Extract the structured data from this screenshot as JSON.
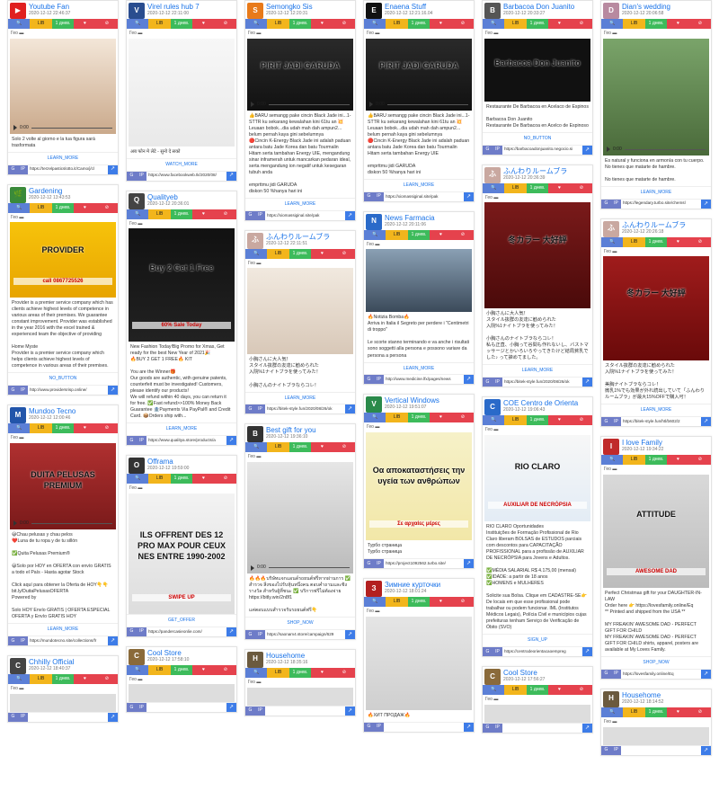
{
  "bar_labels": {
    "ip": "IP",
    "lib": "LIB",
    "day": "1 днев.",
    "geo_label": "Гео"
  },
  "columns": [
    [
      {
        "name": "Youtube Fan",
        "date": "2020-12-12 22:46:37",
        "avatar": "▶",
        "avatar_color": "#e02020",
        "media_h": 106,
        "media_bg": "linear-gradient(#f3e6d8,#caa98b)",
        "video": true,
        "time": "0:00",
        "desc": "Solo 2 volte al giorno e la tua figura sarà trasformata",
        "cta": "LEARN_MORE",
        "url": "https://terzelpasticslotto.it/Camo/j/cl"
      },
      {
        "name": "Gardening",
        "date": "2020-12-12 13:43:53",
        "avatar": "🌿",
        "avatar_color": "#3a8a3a",
        "media_h": 84,
        "media_bg": "linear-gradient(#f7c30b,#e7a400)",
        "overlay": "PROVIDER",
        "overlay2": "call 0867725526",
        "desc": "Provider is a premier service company which has clients achieve highest levels of competence in various areas of their premises. We guarantee constant improvement. Provider was established in the year 2016 with the excel trained & experienced team the objective of providing\n\nHome Myste\nProvider is a premier service company which helps clients achieve highest levels of competence in various areas of their premises.",
        "cta": "NO_BUTTON",
        "url": "http://www.providersrisp.online/"
      },
      {
        "name": "Mundoo Tecno",
        "date": "2020-12-12 12:00:46",
        "avatar": "M",
        "avatar_color": "#2255aa",
        "media_h": 96,
        "media_bg": "linear-gradient(#b03030,#7a1a1a)",
        "overlay": "DUITA PELUSAS PREMIUM",
        "video": true,
        "time": "0:00",
        "desc": "😄Chau pelusas y chau pelos\n❤️Luna de tu ropa y de tu sillón\n\n✅Quita Pelusas Premium®\n\n😃Solo por HOY en OFERTA con envío GRATIS a todo el País - Hasta agotar Stock\n\nClick aquí para obtener la Oferta de HOY👇👇\nbit.ly/DuitaPelusasOFERTA\nPowered by\n\nSolo HOY Envío GRATIS | OFERTA ESPECIAL\nOFERTA y Envío GRATIS HOY",
        "cta": "LEARN_MORE",
        "url": "https://mundotecno.site/collections/fr"
      },
      {
        "name": "Chhilly Official",
        "date": "2020-12-12 18:40:37",
        "avatar": "C",
        "avatar_color": "#444",
        "media_h": 20,
        "media_bg": "#ddd",
        "desc": "",
        "cta": "",
        "url": ""
      }
    ],
    [
      {
        "name": "Virel rules hub 7",
        "date": "2020-12-12 22:11:00",
        "avatar": "V",
        "avatar_color": "#2a4d8f",
        "media_h": 120,
        "media_bg": "linear-gradient(#f7f7f7,#e9e9e9)",
        "desc": "अब फोन मे लेटे - सुनो दे सको",
        "cta": "WATCH_MORE",
        "url": "https://www.facebookweb.tk/2020/08/"
      },
      {
        "name": "Qualityeb",
        "date": "2020-12-12 20:36:01",
        "avatar": "Q",
        "avatar_color": "#444",
        "media_h": 126,
        "media_bg": "linear-gradient(#111,#222)",
        "overlay": "Buy 2 Get 1 Free",
        "overlay2": "60% Sale Today",
        "desc": "New Fashion Today!Big Promo for Xmas, Get ready for the best New Year of 2021🎉\n🔥BUY 2 GET 1 FREE🔥 KIT\n\nYou are the Winner🎁\nOur goods are authentic, with genuine patents, counterfeit must be investigated! Customers, please identify our products!\nWe will refund within 40 days, you can return it for free. ✅Fast refund>>100% Money Back Guarantee 🏦Payments Via PayPal® and Credit Card. 📦Orders ship with...",
        "cta": "LEARN_MORE",
        "url": "https://www.qualitya.store/products/a"
      },
      {
        "name": "Offrama",
        "date": "2020-12-12 19:59:00",
        "avatar": "O",
        "avatar_color": "#333",
        "media_h": 134,
        "media_bg": "linear-gradient(#f3f3f3,#ddd)",
        "overlay": "ILS OFFRENT DES 12 PRO MAX POUR CEUX NES ENTRE 1990-2002",
        "overlay2": "SWIPE UP",
        "desc": "",
        "cta": "GET_OFFER",
        "url": "https://pandercasieonlie.com/"
      },
      {
        "name": "Cool Store",
        "date": "2020-12-12 17:58:10",
        "avatar": "C",
        "avatar_color": "#8a6a3a",
        "media_h": 20,
        "media_bg": "#ddd",
        "desc": "",
        "cta": "",
        "url": ""
      }
    ],
    [
      {
        "name": "Semongko Sis",
        "date": "2020-12-12 12:20:31",
        "avatar": "S",
        "avatar_color": "#e87a1a",
        "media_h": 80,
        "media_bg": "linear-gradient(#2a2a2a,#111)",
        "overlay": "PIRIT JADI GARUDA",
        "video": true,
        "time": "0:00",
        "desc": "👍BARU semangg pake cincin Black Jade ini...1-STTR ku sekarang kewalahan kini 61tu an 💥Leuaan bobok...dia udah mah dah ampun2... belum pernah kaya gini sebelumnya\n🔴Cincin K-Energy Black Jade ini adalah paduan antara batu Jade Korea dan batu Tourmalin Hitam serta tambahan Energy UIE, mengandung sinar inframerah untuk mancarkan pedaran ideal, serta mengandung ion negatif untuk kesegaran tubuh anda\n\nemprttmu jidi GARUDA\ndiskon 50 %hanya hari ini",
        "cta": "LEARN_MORE",
        "url": "https://xiomassiginal.site/pak"
      },
      {
        "name": "ふんわりルームブラ",
        "date": "2020-12-12 22:11:51",
        "avatar": "ふ",
        "avatar_color": "#c9a8a0",
        "media_h": 96,
        "media_bg": "linear-gradient(#f1e9df,#d8c8b8)",
        "desc": "小胸さんに大人気！\nスタイル抜群の友達に勧められた\n入院%1ナイトブラを使ってみた！\n\n小胸さんのナイトブラならコレ！",
        "cta": "LEARN_MORE",
        "url": "https://bitek-style.fun/2020/08/26/ok"
      },
      {
        "name": "Best gift for you",
        "date": "2020-12-12 19:36:10",
        "avatar": "B",
        "avatar_color": "#333",
        "media_h": 124,
        "media_bg": "linear-gradient(#e6e6e6,#bbb)",
        "video": true,
        "time": "0:00",
        "desc": "🔥🔥🔥บริษัทแจกแอนด์รถยนต์ฟรีหากผ่านการ ✅ สำรวจ สิ่งของไปรับหุ้นหนึ่งคน ตอบคำถามและชิงรางวัล สำหรับผู้ที่ชนะ ✅ บริการฟรีไม่ต้องจ่าย https://bitly.win/2n8f1\n\nแค่ตอบแบบสำรวจรับรถยนต์ฟรี👇",
        "cta": "SHOP_NOW",
        "url": "https://saonam4.store/campaign/629"
      },
      {
        "name": "Househome",
        "date": "2020-12-12 18:35:16",
        "avatar": "H",
        "avatar_color": "#6b5a3e",
        "media_h": 20,
        "media_bg": "#ddd",
        "desc": "",
        "cta": "",
        "url": ""
      }
    ],
    [
      {
        "name": "Enaena Stuff",
        "date": "2020-12-12 12:21:16.04",
        "avatar": "E",
        "avatar_color": "#111",
        "media_h": 80,
        "media_bg": "linear-gradient(#2a2a2a,#111)",
        "overlay": "PIRIT JADI GARUDA",
        "video": true,
        "time": "0:00",
        "desc": "👍BARU semangg pake cincin Black Jade ini...1-STTR ku sekarang kewalahan kini 61tu an 💥Leuaan bobok...dia udah mah dah ampun2... belum pernah kaya gini sebelumnya\n🔴Cincin K-Energy Black Jade ini adalah paduan antara batu Jade Korea dan batu Tourmalin Hitam serta tambahan Energy UIE\n\nemprttmu jidi GARUDA\ndiskon 50 %hanya hari ini",
        "cta": "LEARN_MORE",
        "url": "https://xiomassiginal.site/pak"
      },
      {
        "name": "News Farmacia",
        "date": "2020-12-12 20:11:06",
        "avatar": "N",
        "avatar_color": "#2a6ac9",
        "media_h": 70,
        "media_bg": "linear-gradient(#8aa0b4,#3b4a5a)",
        "desc": "🔥Notizia Bomba🔥\nArriva in Italia il Segreto per perdere i \"Centimetri di troppo\"\n\nLe scorte stanno terminando e va anche i risultati sono soggetti alla persona e possono variare da persona a persona",
        "cta": "LEARN_MORE",
        "url": "http://www.medicine.lfx/pages/news"
      },
      {
        "name": "Vertical Windows",
        "date": "2020-12-12 19:51:07",
        "avatar": "V",
        "avatar_color": "#2a8a4a",
        "media_h": 120,
        "media_bg": "linear-gradient(#f6f1c8,#f2e7a8)",
        "overlay": "Οα αποκαταστήσεις την υγεία των ανθρώπων",
        "overlay2": "Σε αρχαίες μέρες",
        "desc": "Турбо страница\nТурбо страница",
        "cta": "",
        "url": "https://project1092562.turbo.site/"
      },
      {
        "name": "Зимние курточки",
        "date": "2020-12-12 18:01:24",
        "avatar": "З",
        "avatar_color": "#b32020",
        "media_h": 104,
        "media_bg": "linear-gradient(#e5e5e5,#cfcfcf)",
        "desc": "🔥ХИТ ПРОДАЖ🔥",
        "cta": "",
        "url": ""
      }
    ],
    [
      {
        "name": "Barbacoa Don Juanito",
        "date": "2020-12-12 20:33:27",
        "avatar": "B",
        "avatar_color": "#555",
        "media_h": 70,
        "media_bg": "#111",
        "overlay": "Barbacoa Don Juanito",
        "desc": "Restaurante De Barbacoa en Acelaco de Espinos\n\nBarbacoa Don Juanito\nRestaurante De Barbacoa en Acelco de Espinoso",
        "cta": "NO_BUTTON",
        "url": "https://barbacoadonjuanito.negocio.si"
      },
      {
        "name": "ふんわりルームブラ",
        "date": "2020-12-12 20:36:39",
        "avatar": "ふ",
        "avatar_color": "#c9a8a0",
        "media_h": 118,
        "media_bg": "linear-gradient(#7a1a1a,#4a0a0a)",
        "overlay": "冬カラー 大好評",
        "desc": "小胸さんに大人気！\nスタイル抜群の友達に勧められた\n入院%1ナイトブラを使ってみた！\n\n小胸さんのナイトブラならコレ！\n私も正直、小胸って谷間も作れないし、バストマッサージとかいろいろやってきたけど結局貧乳でした♪ って諦めてました。",
        "cta": "LEARN_MORE",
        "url": "https://bitek-style.fun/2020/08/26/ok"
      },
      {
        "name": "COE Centro de Orienta",
        "date": "2020-12-12 19:06:43",
        "avatar": "C",
        "avatar_color": "#2a6ac9",
        "media_h": 96,
        "media_bg": "linear-gradient(#f7f7f7,#e3ecf5)",
        "overlay": "RIO CLARO",
        "overlay2": "AUXILIAR DE NECRÓPSIA",
        "desc": "RIO CLARO Oportunidades\nInstituições de Formação Profissional de Rio Claro liberam BOLSAS de ESTUDOS parciais com descontos para CAPACITAÇÃO PROFISSIONAL para a profissão de AUXILIAR DE NECRÓPSIA para Jovens e Adultos.\n\n✅MÉDIA SALARIAL R$ 4.175,00 (mensal)\n✅IDADE: a partir de 18 anos\n✅HOMENS e MULHERES\n\nSolicite sua Bolsa. Clique em CADASTRE-SE👉\nDe locais em que esse profissional pode trabalhar ou podem funcionar. IML (Institutos Médicos Legais), Polícia Civil e municípios cujas prefeituras tenham Serviço de Verificação de Óbito (SVO)",
        "cta": "SIGN_UP",
        "url": "https://centrodeorientacaoempreg"
      },
      {
        "name": "Cool Store",
        "date": "2020-12-12 17:56:27",
        "avatar": "C",
        "avatar_color": "#8a6a3a",
        "media_h": 20,
        "media_bg": "#ddd",
        "desc": "",
        "cta": "",
        "url": ""
      }
    ],
    [
      {
        "name": "Dian's wedding",
        "date": "2020-12-12 20:06:58",
        "avatar": "D",
        "avatar_color": "#b88aa0",
        "media_h": 130,
        "media_bg": "linear-gradient(#7aa46a,#4a6a3a)",
        "video": true,
        "time": "0:00",
        "desc": "Es natural y funciona en armonía con tu cuerpo. No tienes que matarte de hambre.\n\nNo tienes que matarte de hambre.",
        "cta": "LEARN_MORE",
        "url": "https://legendary.turbo.site/chemsl"
      },
      {
        "name": "ふんわりルームブラ",
        "date": "2020-12-12 20:26:18",
        "avatar": "ふ",
        "avatar_color": "#c9a8a0",
        "media_h": 116,
        "media_bg": "linear-gradient(#a01c1c,#6a0a0a)",
        "overlay": "冬カラー 大好評",
        "desc": "スタイル抜群の友達に勧められた\n入院%1ナイトブラを使ってみた！\n\n美胸ナイトブラならコレ！\n微乳1%でも効果が外れ続出していて「ふんわりルームブラ」が最大15%OFFで購入可！",
        "cta": "LEARN_MORE",
        "url": "https://bitek-style.fun/htl/b602/2"
      },
      {
        "name": "I love Family",
        "date": "2020-12-12 19:34:22",
        "avatar": "I",
        "avatar_color": "#c02a2a",
        "media_h": 126,
        "media_bg": "linear-gradient(#d9d9d9,#bcbcbc)",
        "overlay": "ATTITUDE",
        "overlay2": "AWESOME DAD",
        "desc": "Perfect Christmas gift for your DAUGHTER-IN-LAW\nOrder here 👉 https://lovesfamily.online/Eq\n** Printed and shipped from the USA **\n\nMY FREAKIN' AWESOME DAD - PERFECT GIFT FOR CHILD\nMY FREAKIN' AWESOME DAD - PERFECT GIFT FOR CHILD shirts, apparel, posters are available at My Loves Family.",
        "cta": "SHOP_NOW",
        "url": "https://lovesfamily.online/Eq"
      },
      {
        "name": "Househome",
        "date": "2020-12-12 18:14:52",
        "avatar": "H",
        "avatar_color": "#6b5a3e",
        "media_h": 20,
        "media_bg": "#ddd",
        "desc": "",
        "cta": "",
        "url": ""
      }
    ]
  ]
}
